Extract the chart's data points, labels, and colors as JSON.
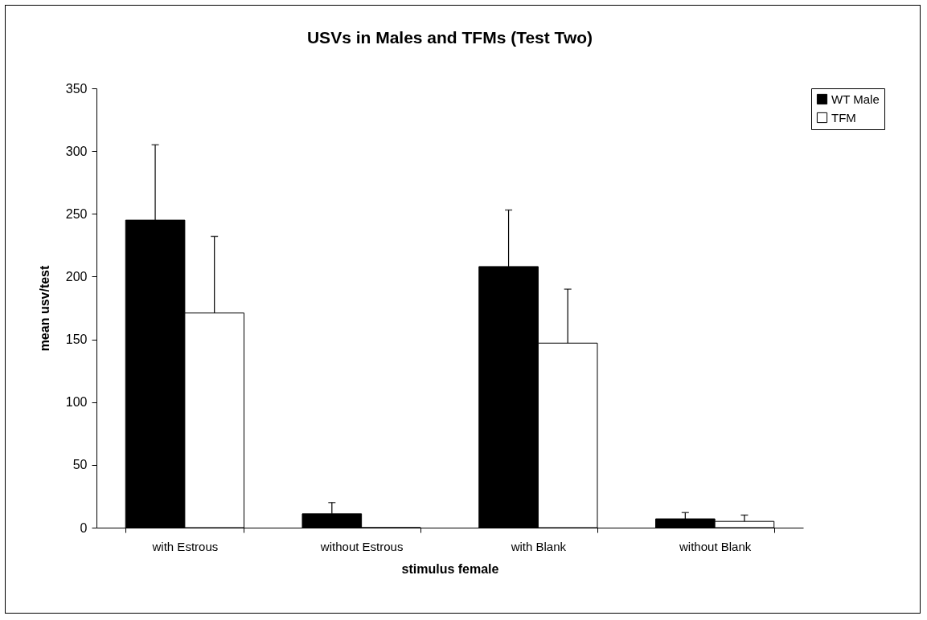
{
  "chart_data": {
    "type": "bar",
    "title": "USVs in Males and TFMs (Test Two)",
    "xlabel": "stimulus female",
    "ylabel": "mean usv/test",
    "categories": [
      "with Estrous",
      "without Estrous",
      "with Blank",
      "without Blank"
    ],
    "series": [
      {
        "name": "WT Male",
        "color": "#000000",
        "values": [
          245,
          11,
          208,
          7
        ],
        "errors": [
          [
            245,
            305
          ],
          [
            11,
            20
          ],
          [
            208,
            253
          ],
          [
            7,
            12
          ]
        ]
      },
      {
        "name": "TFM",
        "color": "#ffffff",
        "values": [
          171,
          0,
          147,
          5
        ],
        "errors": [
          [
            171,
            232
          ],
          null,
          [
            147,
            190
          ],
          [
            5,
            10
          ]
        ]
      }
    ],
    "ylim": [
      0,
      350
    ],
    "yticks": [
      0,
      50,
      100,
      150,
      200,
      250,
      300,
      350
    ],
    "grid": false,
    "legend": "right"
  }
}
